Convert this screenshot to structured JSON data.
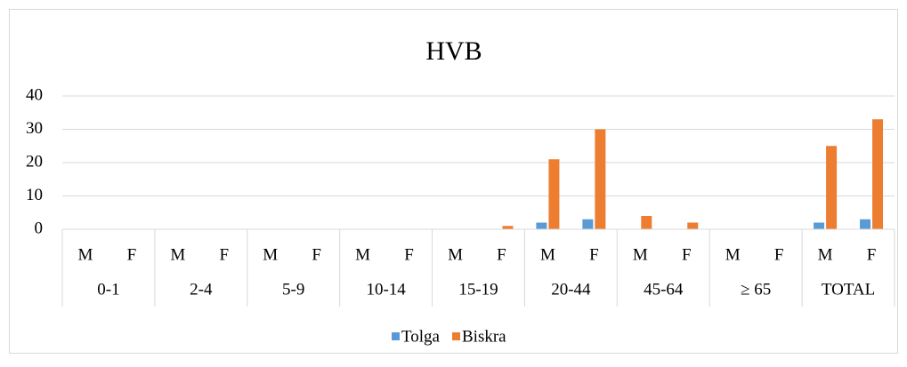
{
  "chart_data": {
    "type": "bar",
    "title": "HVB",
    "groups": [
      "0-1",
      "2-4",
      "5-9",
      "10-14",
      "15-19",
      "20-44",
      "45-64",
      "≥ 65",
      "TOTAL"
    ],
    "categories": [
      "M",
      "F",
      "M",
      "F",
      "M",
      "F",
      "M",
      "F",
      "M",
      "F",
      "M",
      "F",
      "M",
      "F",
      "M",
      "F",
      "M",
      "F"
    ],
    "series": [
      {
        "name": "Tolga",
        "color": "#5b9bd5",
        "values": [
          0,
          0,
          0,
          0,
          0,
          0,
          0,
          0,
          0,
          0,
          2,
          3,
          0,
          0,
          0,
          0,
          2,
          3
        ]
      },
      {
        "name": "Biskra",
        "color": "#ed7d31",
        "values": [
          0,
          0,
          0,
          0,
          0,
          0,
          0,
          0,
          0,
          1,
          21,
          30,
          4,
          2,
          0,
          0,
          25,
          33
        ]
      }
    ],
    "ylim": [
      0,
      40
    ],
    "yticks": [
      0,
      10,
      20,
      30,
      40
    ],
    "grid": true,
    "legend": "bottom"
  }
}
